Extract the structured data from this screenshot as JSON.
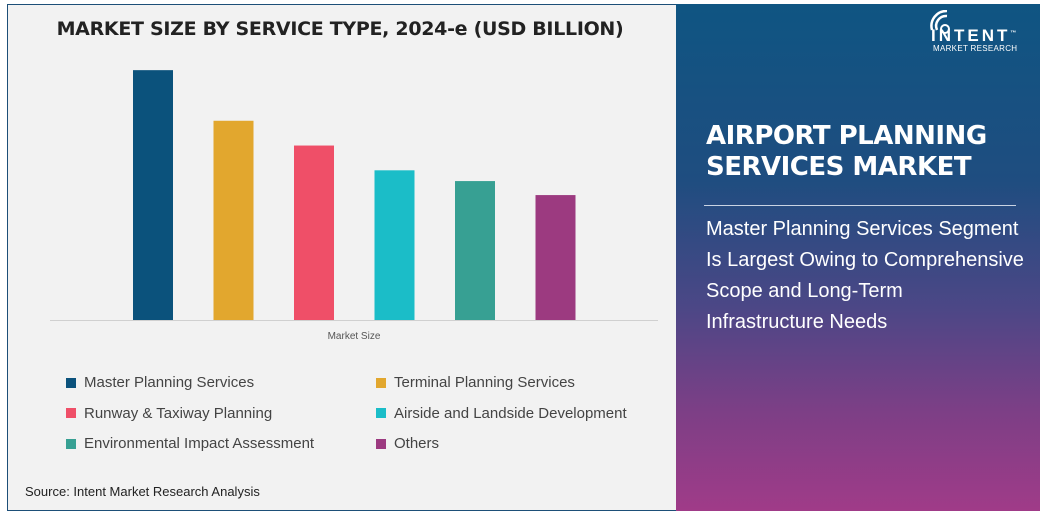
{
  "chart_data": {
    "type": "bar",
    "title": "MARKET SIZE BY SERVICE TYPE, 2024-e (USD BILLION)",
    "xlabel": "Market Size",
    "ylabel": "",
    "categories": [
      "Master Planning Services",
      "Terminal Planning Services",
      "Runway & Taxiway Planning",
      "Airside and Landside Development",
      "Environmental Impact Assessment",
      "Others"
    ],
    "values": [
      2.32,
      1.85,
      1.62,
      1.39,
      1.29,
      1.16
    ],
    "colors": [
      "#0b527c",
      "#e2a72e",
      "#ef4f68",
      "#1bbdc8",
      "#37a093",
      "#9c3a80"
    ],
    "ylim": [
      0,
      2.6
    ],
    "grid": false,
    "legend_placement": "bottom"
  },
  "source": "Source: Intent Market Research Analysis",
  "panel": {
    "title_line1": "AIRPORT PLANNING",
    "title_line2": "SERVICES MARKET",
    "description": "Master Planning Services Segment Is Largest Owing to Comprehensive Scope and Long-Term Infrastructure Needs"
  },
  "logo": {
    "name": "INTENT",
    "tagline": "MARKET RESEARCH",
    "tm": "™"
  }
}
